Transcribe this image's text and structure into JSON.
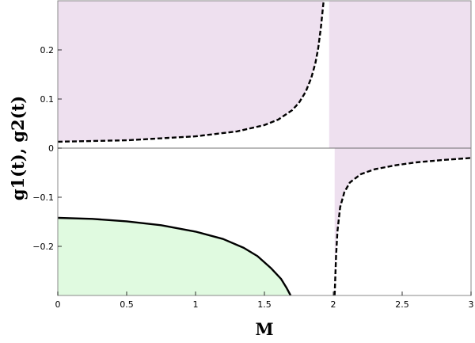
{
  "chart_data": {
    "type": "line",
    "xlabel": "M",
    "ylabel": "g1(t), g2(t)",
    "xlim": [
      0,
      3
    ],
    "ylim": [
      -0.3,
      0.3
    ],
    "xticks": [
      0,
      0.5,
      1,
      1.5,
      2,
      2.5,
      3
    ],
    "xtick_labels": [
      "0",
      "0.5",
      "1",
      "1.5",
      "2",
      "2.5",
      "3"
    ],
    "yticks": [
      -0.2,
      -0.1,
      0,
      0.1,
      0.2
    ],
    "ytick_labels": [
      "−0.2",
      "−0.1",
      "0",
      "0.1",
      "0.2"
    ],
    "grid": false,
    "series": [
      {
        "style": "dashed",
        "color": "#000000",
        "x": [
          0,
          0.5,
          1,
          1.3,
          1.5,
          1.6,
          1.7,
          1.75,
          1.8,
          1.84,
          1.87,
          1.89,
          1.91,
          1.93
        ],
        "y": [
          0.013,
          0.016,
          0.024,
          0.034,
          0.047,
          0.058,
          0.077,
          0.092,
          0.115,
          0.143,
          0.173,
          0.203,
          0.245,
          0.3
        ]
      },
      {
        "style": "dashed",
        "color": "#000000",
        "x": [
          2.01,
          2.02,
          2.03,
          2.05,
          2.08,
          2.12,
          2.2,
          2.3,
          2.45,
          2.6,
          2.8,
          3.0
        ],
        "y": [
          -0.3,
          -0.22,
          -0.17,
          -0.12,
          -0.09,
          -0.07,
          -0.053,
          -0.043,
          -0.035,
          -0.029,
          -0.024,
          -0.02
        ]
      },
      {
        "style": "solid",
        "color": "#000000",
        "x": [
          0,
          0.25,
          0.5,
          0.75,
          1.0,
          1.2,
          1.35,
          1.45,
          1.55,
          1.62,
          1.66,
          1.69
        ],
        "y": [
          -0.142,
          -0.144,
          -0.149,
          -0.157,
          -0.17,
          -0.185,
          -0.203,
          -0.22,
          -0.245,
          -0.266,
          -0.284,
          -0.3
        ]
      }
    ],
    "regions": [
      {
        "color": "#eee0ef",
        "fill_between": "series0_to_top",
        "x_from": 0,
        "x_to": 1.93
      },
      {
        "color": "#eee0ef",
        "x_from": 1.97,
        "x_to": 3.0,
        "y_from": 0,
        "y_to": 0.3
      },
      {
        "color": "#eee0ef",
        "fill_between": "series1_to_zero",
        "x_from": 2.01,
        "x_to": 3.0
      },
      {
        "color": "#e0fae0",
        "fill_between": "bottom_to_series2",
        "x_from": 0,
        "x_to": 1.69
      }
    ]
  }
}
